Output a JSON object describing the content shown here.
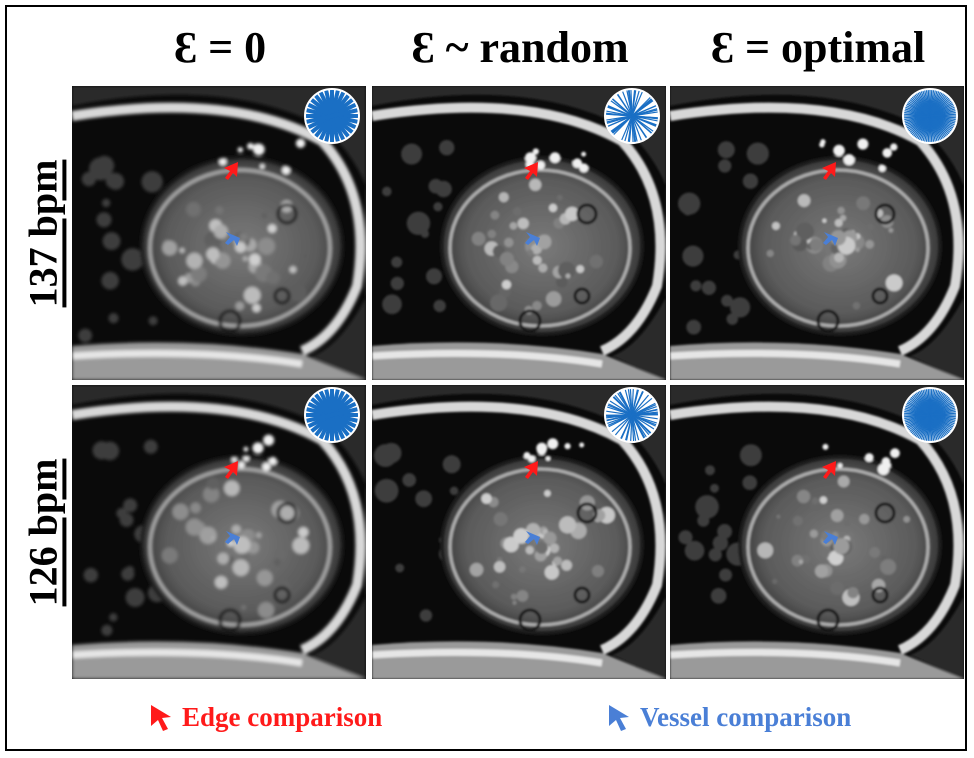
{
  "columns": [
    {
      "title": "Ɛ = 0",
      "sampling": "sparse"
    },
    {
      "title": "Ɛ ~ random",
      "sampling": "random"
    },
    {
      "title": "Ɛ = optimal",
      "sampling": "dense"
    }
  ],
  "rows": [
    {
      "label": "137 bpm"
    },
    {
      "label": "126 bpm"
    }
  ],
  "legend": {
    "edge": {
      "label": "Edge comparison",
      "color": "#ff1a1a"
    },
    "vessel": {
      "label": "Vessel comparison",
      "color": "#4a7fd6"
    }
  },
  "colors": {
    "spoke": "#1a6fc4",
    "background": "#ffffff",
    "border": "#000000"
  }
}
